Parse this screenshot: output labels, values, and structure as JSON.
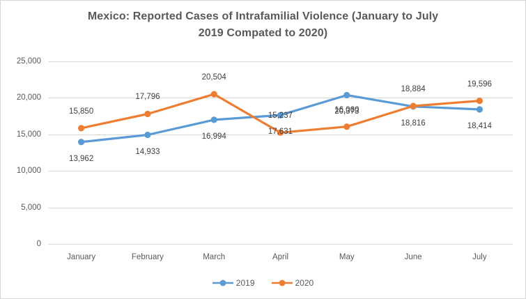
{
  "chart": {
    "title_lines": [
      "Mexico: Reported Cases of Intrafamilial Violence (January to July",
      "2019 Compated to 2020)"
    ]
  },
  "chart_data": {
    "type": "line",
    "title": "Mexico: Reported Cases of Intrafamilial Violence (January to July 2019 Compated to 2020)",
    "xlabel": "",
    "ylabel": "",
    "categories": [
      "January",
      "February",
      "March",
      "April",
      "May",
      "June",
      "July"
    ],
    "series": [
      {
        "name": "2019",
        "color": "#5B9BD5",
        "values": [
          13962,
          14933,
          16994,
          17631,
          20373,
          18816,
          18414
        ],
        "data_labels": [
          "13,962",
          "14,933",
          "16,994",
          "17,631",
          "20,373",
          "18,816",
          "18,414"
        ],
        "label_position": "below",
        "marker": "circle"
      },
      {
        "name": "2020",
        "color": "#ED7D31",
        "values": [
          15850,
          17796,
          20504,
          15237,
          16060,
          18884,
          19596
        ],
        "data_labels": [
          "15,850",
          "17,796",
          "20,504",
          "15,237",
          "16,060",
          "18,884",
          "19,596"
        ],
        "label_position": "above",
        "marker": "circle"
      }
    ],
    "ylim": [
      0,
      25000
    ],
    "yticks": [
      {
        "value": 0,
        "label": "0"
      },
      {
        "value": 5000,
        "label": "5,000"
      },
      {
        "value": 10000,
        "label": "10,000"
      },
      {
        "value": 15000,
        "label": "15,000"
      },
      {
        "value": 20000,
        "label": "20,000"
      },
      {
        "value": 25000,
        "label": "25,000"
      }
    ],
    "grid": "horizontal",
    "gridline_color": "#D9D9D9",
    "axis_text_color": "#595959",
    "data_label_color": "#404040",
    "title_color": "#595959",
    "legend_position": "bottom"
  }
}
